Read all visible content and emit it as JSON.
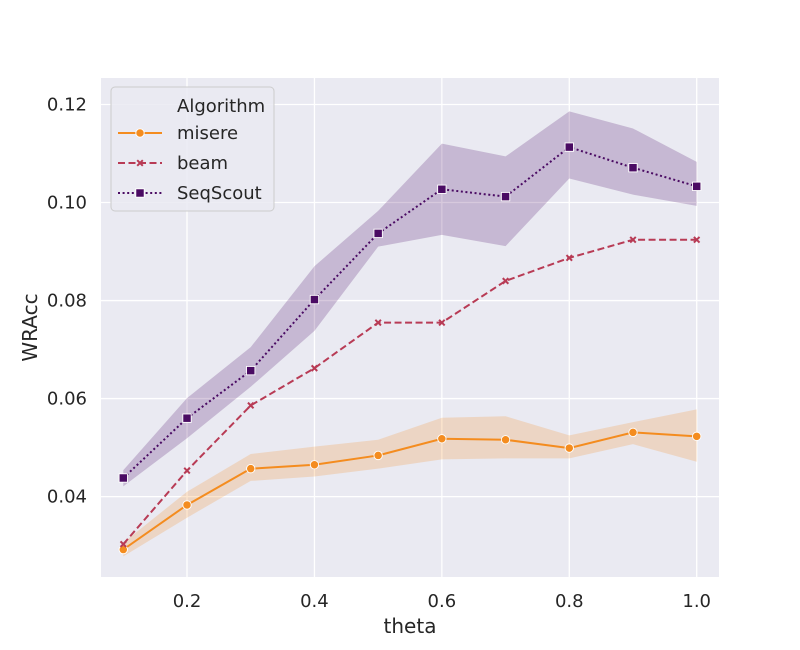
{
  "chart_data": {
    "type": "line",
    "xlabel": "theta",
    "ylabel": "WRAcc",
    "xlim": [
      0.065,
      1.035
    ],
    "ylim": [
      0.0236,
      0.1254
    ],
    "x_ticks": [
      "0.2",
      "0.4",
      "0.6",
      "0.8",
      "1.0"
    ],
    "x_tick_values": [
      0.2,
      0.4,
      0.6,
      0.8,
      1.0
    ],
    "y_ticks": [
      "0.04",
      "0.06",
      "0.08",
      "0.10",
      "0.12"
    ],
    "y_tick_values": [
      0.04,
      0.06,
      0.08,
      0.1,
      0.12
    ],
    "grid": true,
    "background": "#EAEAF2",
    "legend": {
      "title": "Algorithm",
      "placement": "top-left"
    },
    "x": [
      0.1,
      0.2,
      0.3,
      0.4,
      0.5,
      0.6,
      0.7,
      0.8,
      0.9,
      1.0
    ],
    "series": [
      {
        "name": "misere",
        "color": "#F48C1F",
        "line_style": "solid",
        "marker": "circle",
        "values": [
          0.0292,
          0.0383,
          0.0457,
          0.0465,
          0.0484,
          0.0518,
          0.0516,
          0.0499,
          0.0531,
          0.0523
        ],
        "ci_low": [
          0.0278,
          0.0357,
          0.0432,
          0.0441,
          0.0457,
          0.0476,
          0.0478,
          0.0478,
          0.0507,
          0.0471
        ],
        "ci_high": [
          0.0306,
          0.041,
          0.0487,
          0.0502,
          0.0516,
          0.0561,
          0.0564,
          0.0525,
          0.0552,
          0.0578
        ]
      },
      {
        "name": "beam",
        "color": "#B83B55",
        "line_style": "dashed",
        "marker": "x",
        "values": [
          0.0303,
          0.0453,
          0.0586,
          0.0662,
          0.0755,
          0.0755,
          0.084,
          0.0887,
          0.0924,
          0.0924
        ]
      },
      {
        "name": "SeqScout",
        "color": "#4A0B63",
        "line_style": "dotted",
        "marker": "square",
        "values": [
          0.0438,
          0.056,
          0.0657,
          0.0802,
          0.0937,
          0.1027,
          0.1012,
          0.1113,
          0.1071,
          0.1033
        ],
        "ci_low": [
          0.0421,
          0.0519,
          0.0624,
          0.0738,
          0.091,
          0.0934,
          0.0911,
          0.1049,
          0.1016,
          0.0993
        ],
        "ci_high": [
          0.0454,
          0.0601,
          0.0705,
          0.087,
          0.0983,
          0.112,
          0.1094,
          0.1186,
          0.1151,
          0.1083
        ]
      }
    ]
  }
}
